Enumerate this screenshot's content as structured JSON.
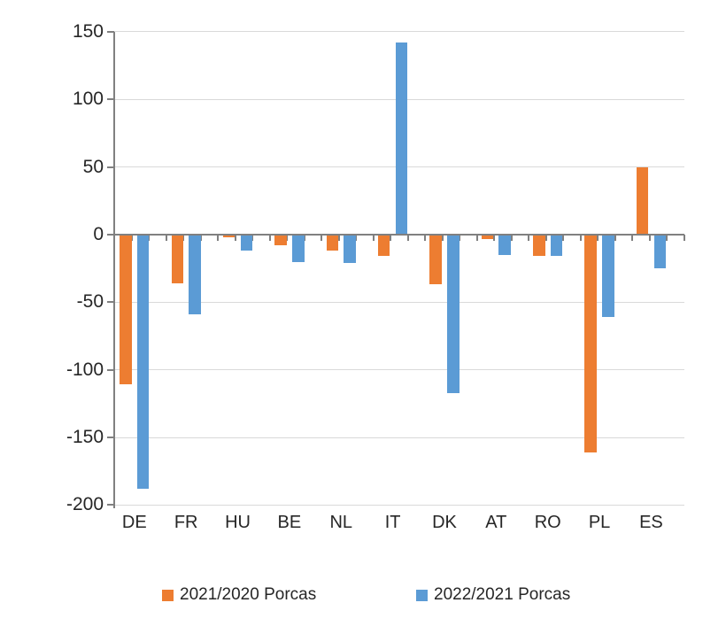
{
  "chart_data": {
    "type": "bar",
    "title": "",
    "xlabel": "",
    "ylabel": "",
    "categories": [
      "DE",
      "FR",
      "HU",
      "BE",
      "NL",
      "IT",
      "DK",
      "AT",
      "RO",
      "PL",
      "ES"
    ],
    "series": [
      {
        "name": "2021/2020 Porcas",
        "color": "#ED7D31",
        "values": [
          -111,
          -36,
          -2,
          -8,
          -12,
          -16,
          -37,
          -3,
          -16,
          -161,
          50
        ]
      },
      {
        "name": "2022/2021 Porcas",
        "color": "#5B9BD5",
        "values": [
          -188,
          -59,
          -12,
          -20,
          -21,
          142,
          -117,
          -15,
          -16,
          -61,
          -25
        ]
      }
    ],
    "ylim": [
      -200,
      150
    ],
    "ytick_step": 50,
    "yticks": [
      150,
      100,
      50,
      0,
      -50,
      -100,
      -150,
      -200
    ],
    "grid": true,
    "legend_position": "bottom"
  },
  "colors": {
    "axis": "#808080",
    "gridline": "#D9D9D9",
    "text": "#262626",
    "background": "#FFFFFF"
  }
}
